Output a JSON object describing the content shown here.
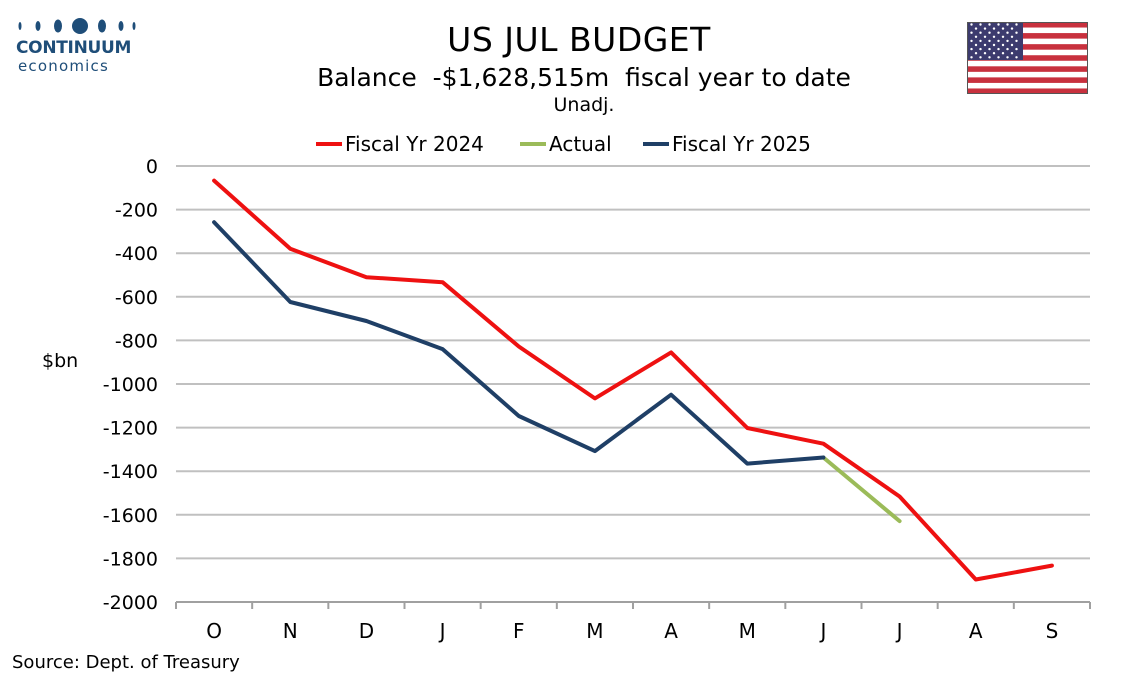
{
  "logo": {
    "name": "CONTINUUM",
    "sub": "economics"
  },
  "header": {
    "title": "US JUL BUDGET",
    "subtitle": "Balance  -$1,628,515m  fiscal year to date",
    "subtitle2": "Unadj."
  },
  "source": "Source: Dept. of Treasury",
  "colors": {
    "fy2024": "#ee1111",
    "actual": "#9bbb59",
    "fy2025": "#1f3f66",
    "grid": "#c0c0c0",
    "logo": "#1f4e79"
  },
  "chart_data": {
    "type": "line",
    "categories": [
      "O",
      "N",
      "D",
      "J",
      "F",
      "M",
      "A",
      "M",
      "J",
      "J",
      "A",
      "S"
    ],
    "ylabel": "$bn",
    "ylim": [
      -2000,
      0
    ],
    "yticks": [
      0,
      -200,
      -400,
      -600,
      -800,
      -1000,
      -1200,
      -1400,
      -1600,
      -1800,
      -2000
    ],
    "grid": true,
    "legend_position": "top",
    "series": [
      {
        "name": "Fiscal Yr 2024",
        "color": "#ee1111",
        "values": [
          -67,
          -380,
          -510,
          -533,
          -828,
          -1066,
          -855,
          -1202,
          -1274,
          -1516,
          -1897,
          -1833
        ]
      },
      {
        "name": "Actual",
        "color": "#9bbb59",
        "values": [
          null,
          null,
          null,
          null,
          null,
          null,
          null,
          null,
          -1337,
          -1629,
          null,
          null
        ]
      },
      {
        "name": "Fiscal Yr 2025",
        "color": "#1f3f66",
        "values": [
          -258,
          -624,
          -711,
          -840,
          -1147,
          -1308,
          -1049,
          -1365,
          -1337,
          null,
          null,
          null
        ]
      }
    ]
  }
}
